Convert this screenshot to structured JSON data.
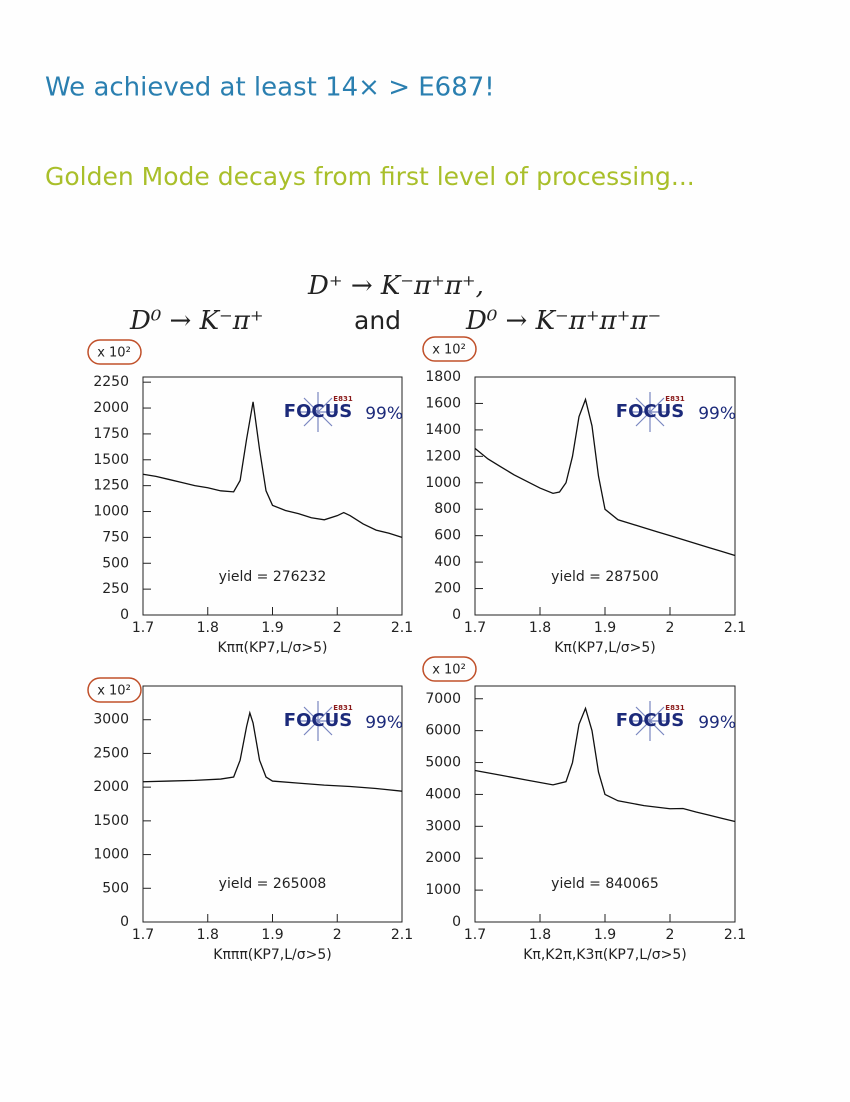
{
  "header": {
    "title": "We achieved at least 14× > E687!",
    "subtitle": "Golden Mode decays from first level of processing...",
    "decay_top": "D⁺ → K⁻π⁺π⁺,",
    "decay_left": "D⁰ → K⁻π⁺",
    "conjunction": "and",
    "decay_right": "D⁰ → K⁻π⁺π⁺π⁻"
  },
  "chart_data": [
    {
      "type": "line",
      "x_label": "Kππ(KP7,L/σ>5)",
      "y_multiplier": "x 10²",
      "color": "#111111",
      "annotations": {
        "yield": "yield = 276232",
        "logo": "FOCUS",
        "logo_sub": "E831",
        "efficiency": "99%"
      },
      "x": [
        1.7,
        1.72,
        1.74,
        1.76,
        1.78,
        1.8,
        1.82,
        1.84,
        1.85,
        1.86,
        1.87,
        1.88,
        1.89,
        1.9,
        1.92,
        1.94,
        1.96,
        1.98,
        2.0,
        2.01,
        2.02,
        2.04,
        2.06,
        2.08,
        2.1
      ],
      "values": [
        1360,
        1340,
        1310,
        1280,
        1250,
        1230,
        1200,
        1190,
        1300,
        1700,
        2060,
        1600,
        1200,
        1060,
        1010,
        980,
        940,
        920,
        960,
        990,
        960,
        880,
        820,
        790,
        750
      ],
      "xlim": [
        1.7,
        2.1
      ],
      "xticks": [
        1.7,
        1.8,
        1.9,
        2,
        2.1
      ],
      "ylim": [
        0,
        2300
      ],
      "yticks": [
        0,
        250,
        500,
        750,
        1000,
        1250,
        1500,
        1750,
        2000,
        2250
      ]
    },
    {
      "type": "line",
      "x_label": "Kπ(KP7,L/σ>5)",
      "y_multiplier": "x 10²",
      "color": "#111111",
      "annotations": {
        "yield": "yield = 287500",
        "logo": "FOCUS",
        "logo_sub": "E831",
        "efficiency": "99%"
      },
      "x": [
        1.7,
        1.72,
        1.74,
        1.76,
        1.78,
        1.8,
        1.82,
        1.83,
        1.84,
        1.85,
        1.86,
        1.87,
        1.88,
        1.89,
        1.9,
        1.92,
        1.94,
        1.96,
        1.98,
        2.0,
        2.02,
        2.04,
        2.06,
        2.08,
        2.1
      ],
      "values": [
        1260,
        1180,
        1120,
        1060,
        1010,
        960,
        920,
        930,
        1000,
        1200,
        1500,
        1630,
        1430,
        1050,
        800,
        720,
        690,
        660,
        630,
        600,
        570,
        540,
        510,
        480,
        450
      ],
      "xlim": [
        1.7,
        2.1
      ],
      "xticks": [
        1.7,
        1.8,
        1.9,
        2,
        2.1
      ],
      "ylim": [
        0,
        1800
      ],
      "yticks": [
        0,
        200,
        400,
        600,
        800,
        1000,
        1200,
        1400,
        1600,
        1800
      ]
    },
    {
      "type": "line",
      "x_label": "Kπππ(KP7,L/σ>5)",
      "y_multiplier": "x 10²",
      "color": "#111111",
      "annotations": {
        "yield": "yield = 265008",
        "logo": "FOCUS",
        "logo_sub": "E831",
        "efficiency": "99%"
      },
      "x": [
        1.7,
        1.74,
        1.78,
        1.82,
        1.84,
        1.85,
        1.86,
        1.865,
        1.87,
        1.88,
        1.89,
        1.9,
        1.94,
        1.98,
        2.02,
        2.06,
        2.1
      ],
      "values": [
        2080,
        2090,
        2100,
        2120,
        2150,
        2400,
        2900,
        3100,
        2950,
        2400,
        2150,
        2090,
        2060,
        2030,
        2010,
        1980,
        1940
      ],
      "xlim": [
        1.7,
        2.1
      ],
      "xticks": [
        1.7,
        1.8,
        1.9,
        2,
        2.1
      ],
      "ylim": [
        0,
        3500
      ],
      "yticks": [
        0,
        500,
        1000,
        1500,
        2000,
        2500,
        3000
      ]
    },
    {
      "type": "line",
      "x_label": "Kπ,K2π,K3π(KP7,L/σ>5)",
      "y_multiplier": "x 10²",
      "color": "#111111",
      "annotations": {
        "yield": "yield = 840065",
        "logo": "FOCUS",
        "logo_sub": "E831",
        "efficiency": "99%"
      },
      "x": [
        1.7,
        1.74,
        1.78,
        1.82,
        1.84,
        1.85,
        1.86,
        1.87,
        1.88,
        1.89,
        1.9,
        1.92,
        1.96,
        2.0,
        2.02,
        2.04,
        2.06,
        2.08,
        2.1
      ],
      "values": [
        4750,
        4600,
        4450,
        4300,
        4400,
        5000,
        6200,
        6700,
        6000,
        4700,
        4000,
        3800,
        3650,
        3550,
        3560,
        3450,
        3350,
        3250,
        3150
      ],
      "xlim": [
        1.7,
        2.1
      ],
      "xticks": [
        1.7,
        1.8,
        1.9,
        2,
        2.1
      ],
      "ylim": [
        0,
        7400
      ],
      "yticks": [
        0,
        1000,
        2000,
        3000,
        4000,
        5000,
        6000,
        7000
      ]
    }
  ]
}
